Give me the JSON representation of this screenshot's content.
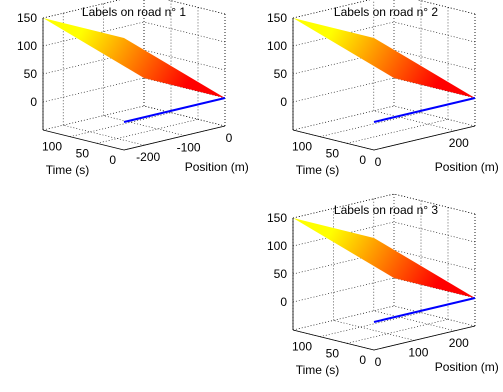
{
  "chart_data": [
    {
      "type": "surface",
      "title": "Labels on road n° 1",
      "xlabel": "Position (m)",
      "ylabel": "Time (s)",
      "xlim": [
        -250,
        0
      ],
      "ylim": [
        0,
        150
      ],
      "zlim": [
        -50,
        150
      ],
      "xticks": [
        "-200",
        "-100",
        "0"
      ],
      "yticks": [
        "0",
        "50",
        "100"
      ],
      "zticks": [
        "0",
        "50",
        "100",
        "150"
      ],
      "grid": true,
      "surface": {
        "x": [
          -250,
          0
        ],
        "y": [
          0,
          150
        ],
        "z_at_min_position": 150,
        "z_at_max_position": 0,
        "colormap": "autumn"
      },
      "line": {
        "color": "#0000ff",
        "note": ""
      }
    },
    {
      "type": "surface",
      "title": "Labels on road n° 2",
      "xlabel": "Position (m)",
      "ylabel": "Time (s)",
      "xlim": [
        0,
        250
      ],
      "ylim": [
        0,
        150
      ],
      "zlim": [
        -50,
        150
      ],
      "xticks": [
        "0",
        "200"
      ],
      "yticks": [
        "0",
        "50",
        "100"
      ],
      "zticks": [
        "0",
        "50",
        "100",
        "150"
      ],
      "grid": true,
      "surface": {
        "x": [
          0,
          250
        ],
        "y": [
          0,
          150
        ],
        "z_at_min_position": 150,
        "z_at_max_position": 0,
        "colormap": "autumn"
      },
      "line": {
        "color": "#0000ff",
        "note": ""
      }
    },
    {
      "type": "surface",
      "title": "Labels on road n° 3",
      "xlabel": "Position (m)",
      "ylabel": "Time (s)",
      "xlim": [
        0,
        250
      ],
      "ylim": [
        0,
        150
      ],
      "zlim": [
        -50,
        150
      ],
      "xticks": [
        "0",
        "100",
        "200"
      ],
      "yticks": [
        "0",
        "50",
        "100"
      ],
      "zticks": [
        "0",
        "50",
        "100",
        "150"
      ],
      "grid": true,
      "surface": {
        "x": [
          0,
          250
        ],
        "y": [
          0,
          150
        ],
        "z_at_min_position": 150,
        "z_at_max_position": 0,
        "colormap": "autumn"
      },
      "line": {
        "color": "#0000ff",
        "note": ""
      }
    }
  ],
  "colors": {
    "surface_high": "#ffff00",
    "surface_low": "#ff0000",
    "line": "#0000ff",
    "axis": "#000000",
    "grid": "#000000",
    "background": "#ffffff"
  }
}
